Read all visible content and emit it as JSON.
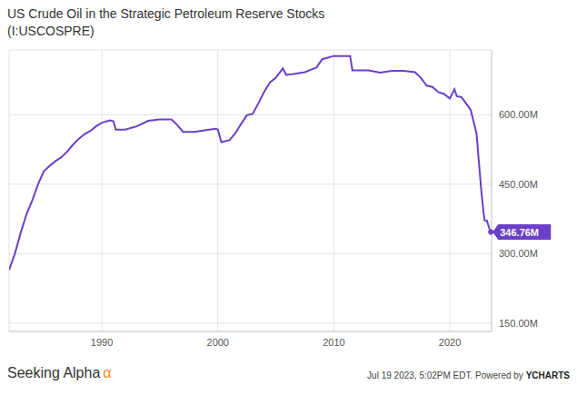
{
  "chart_data": {
    "type": "line",
    "title": "US Crude Oil in the Strategic Petroleum Reserve Stocks",
    "subtitle": "(I:USCOSPRE)",
    "x": [
      1982.0,
      1982.5,
      1983.0,
      1983.5,
      1984.0,
      1984.5,
      1985.0,
      1985.5,
      1986.0,
      1986.5,
      1987.0,
      1987.5,
      1988.0,
      1988.5,
      1989.0,
      1989.5,
      1990.0,
      1990.7,
      1991.0,
      1991.2,
      1992.0,
      1993.0,
      1994.0,
      1995.0,
      1996.0,
      1996.5,
      1997.0,
      1998.0,
      1999.0,
      1999.8,
      2000.0,
      2000.3,
      2001.0,
      2001.5,
      2002.0,
      2002.5,
      2003.0,
      2003.5,
      2004.0,
      2004.5,
      2005.0,
      2005.6,
      2005.9,
      2006.5,
      2007.0,
      2007.5,
      2008.0,
      2008.5,
      2009.0,
      2010.0,
      2011.0,
      2011.4,
      2011.6,
      2012.0,
      2013.0,
      2014.0,
      2015.0,
      2016.0,
      2017.0,
      2017.5,
      2018.0,
      2018.5,
      2019.0,
      2019.5,
      2020.0,
      2020.4,
      2020.6,
      2021.0,
      2021.5,
      2021.8,
      2022.0,
      2022.3,
      2022.5,
      2022.7,
      2022.9,
      2023.0,
      2023.2,
      2023.4,
      2023.54
    ],
    "values": [
      265000000,
      300000000,
      345000000,
      385000000,
      415000000,
      450000000,
      478000000,
      490000000,
      500000000,
      508000000,
      520000000,
      535000000,
      548000000,
      558000000,
      565000000,
      575000000,
      583000000,
      588000000,
      586000000,
      568000000,
      568000000,
      575000000,
      587000000,
      590000000,
      590000000,
      578000000,
      563000000,
      563000000,
      567000000,
      570000000,
      568000000,
      541000000,
      545000000,
      560000000,
      580000000,
      599000000,
      602000000,
      625000000,
      650000000,
      670000000,
      680000000,
      700000000,
      686000000,
      688000000,
      690000000,
      692000000,
      697000000,
      702000000,
      720000000,
      727000000,
      727000000,
      727000000,
      696000000,
      696000000,
      696000000,
      691000000,
      695000000,
      695000000,
      692000000,
      680000000,
      663000000,
      660000000,
      649000000,
      645000000,
      635000000,
      655000000,
      640000000,
      638000000,
      621000000,
      610000000,
      590000000,
      560000000,
      500000000,
      440000000,
      390000000,
      372000000,
      371000000,
      355000000,
      346760000
    ],
    "color": "#6b3fc8",
    "xlim": [
      1982,
      2023.6
    ],
    "xticks": [
      1990,
      2000,
      2010,
      2020
    ],
    "ylim": [
      132000000,
      740000000
    ],
    "yticks": [
      {
        "value": 150000000,
        "label": "150.00M"
      },
      {
        "value": 300000000,
        "label": "300.00M"
      },
      {
        "value": 450000000,
        "label": "450.00M"
      },
      {
        "value": 600000000,
        "label": "600.00M"
      }
    ],
    "grid": true,
    "annotations": [
      {
        "text": "346.76M"
      }
    ],
    "source": "Seeking Alpha",
    "source_mark": "α",
    "footer": "Jul 19 2023, 5:02PM EDT. Powered by",
    "footer_brand": "YCHARTS"
  }
}
